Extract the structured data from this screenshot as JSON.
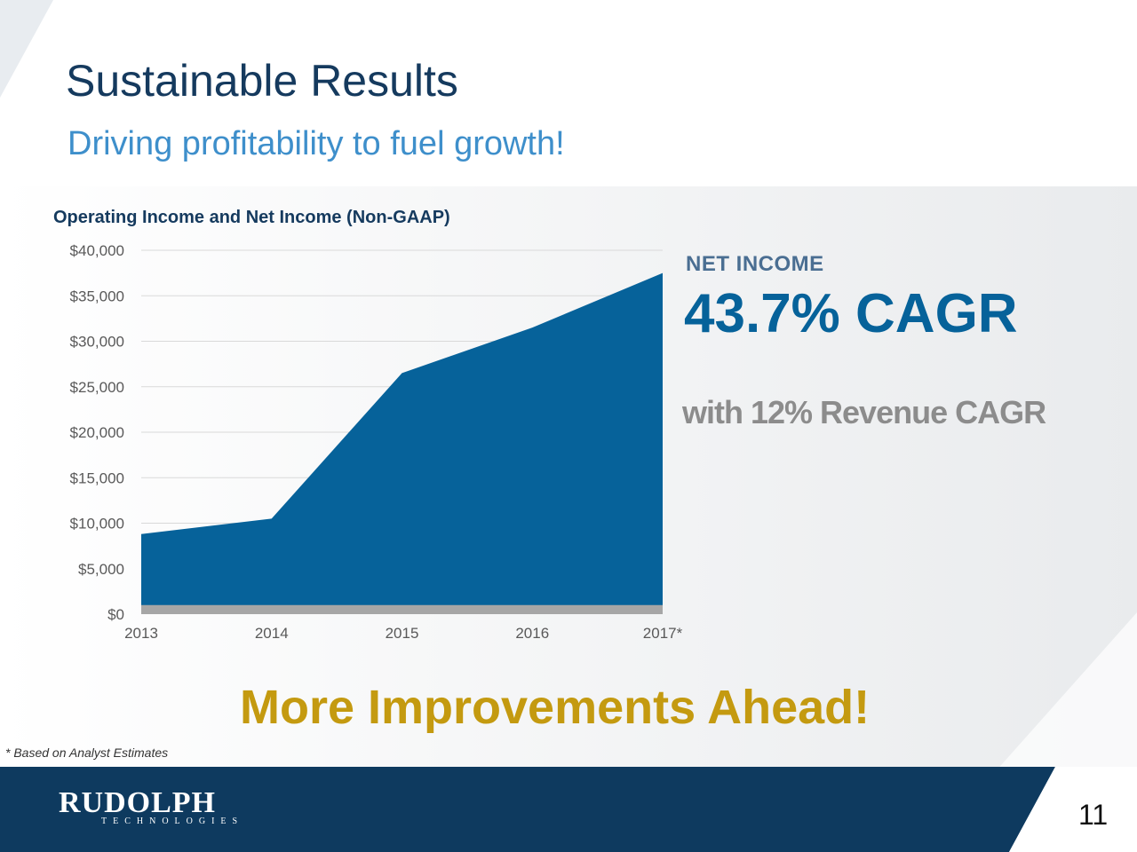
{
  "slide": {
    "title": "Sustainable Results",
    "subtitle": "Driving profitability to fuel growth!",
    "net_income_label": "NET INCOME",
    "net_income_cagr": "43.7% CAGR",
    "revenue_note": "with 12% Revenue CAGR",
    "headline": "More Improvements Ahead!",
    "footnote": "* Based on Analyst Estimates",
    "page_number": "11",
    "logo": {
      "name": "RUDOLPH",
      "tagline": "TECHNOLOGIES"
    }
  },
  "colors": {
    "title": "#153a5e",
    "subtitle": "#3e8fcb",
    "net_income_area": "#06629a",
    "operating_income_area": "#a6a6a6",
    "headline": "#c49a10",
    "footer": "#0e3a5f"
  },
  "chart_data": {
    "type": "area",
    "title": "Operating Income and Net Income (Non-GAAP)",
    "categories": [
      "2013",
      "2014",
      "2015",
      "2016",
      "2017*"
    ],
    "y_ticks": [
      "$0",
      "$5,000",
      "$10,000",
      "$15,000",
      "$20,000",
      "$25,000",
      "$30,000",
      "$35,000",
      "$40,000"
    ],
    "ylim": [
      0,
      40000
    ],
    "grid": true,
    "series": [
      {
        "values": [
          8800,
          10500,
          26500,
          31500,
          37500
        ]
      },
      {
        "values": [
          1000,
          1000,
          1000,
          1000,
          1000
        ]
      }
    ]
  }
}
